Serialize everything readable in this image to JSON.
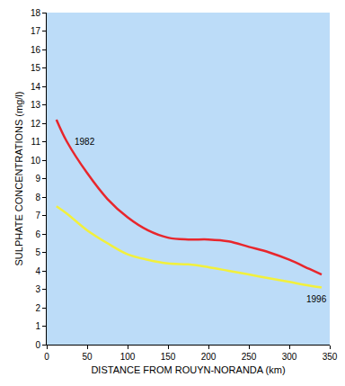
{
  "chart_data": {
    "type": "line",
    "x_label": "DISTANCE FROM ROUYN-NORANDA (km)",
    "y_label": "SULPHATE CONCENTRATIONS (mg/l)",
    "x": [
      12,
      25,
      50,
      75,
      100,
      125,
      150,
      175,
      200,
      225,
      250,
      275,
      300,
      325,
      340
    ],
    "series": [
      {
        "name": "1982",
        "color": "#e8262c",
        "values": [
          12.2,
          11.0,
          9.3,
          7.9,
          6.9,
          6.2,
          5.8,
          5.7,
          5.7,
          5.6,
          5.3,
          5.0,
          4.6,
          4.1,
          3.8
        ]
      },
      {
        "name": "1996",
        "color": "#f2f03c",
        "values": [
          7.5,
          7.1,
          6.2,
          5.5,
          4.9,
          4.6,
          4.4,
          4.35,
          4.2,
          4.0,
          3.8,
          3.6,
          3.4,
          3.2,
          3.1
        ]
      }
    ],
    "xlim": [
      0,
      350
    ],
    "xticks": [
      0,
      50,
      100,
      150,
      200,
      250,
      300,
      350
    ],
    "ylim": [
      0,
      18
    ],
    "yticks": [
      0,
      1,
      2,
      3,
      4,
      5,
      6,
      7,
      8,
      9,
      10,
      11,
      12,
      13,
      14,
      15,
      16,
      17,
      18
    ],
    "grid": false
  }
}
